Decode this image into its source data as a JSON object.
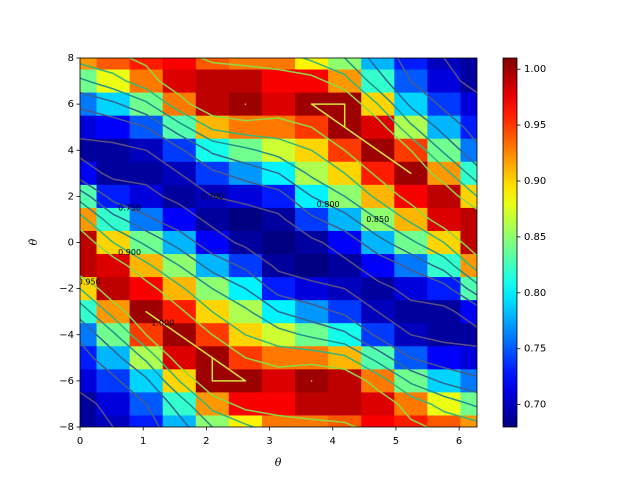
{
  "chart_data": {
    "type": "heatmap",
    "colormap": "jet",
    "x_label": "θ",
    "y_label": "θ̇",
    "x": [
      0,
      0.524,
      1.047,
      1.571,
      2.094,
      2.618,
      3.142,
      3.665,
      4.189,
      4.712,
      5.236,
      5.76,
      6.283
    ],
    "y": [
      8,
      7,
      6,
      5,
      4,
      3,
      2,
      1,
      0,
      -1,
      -2,
      -3,
      -4,
      -5,
      -6,
      -7,
      -8
    ],
    "z": [
      [
        0.92,
        0.94,
        0.96,
        0.97,
        0.94,
        0.93,
        0.93,
        0.89,
        0.85,
        0.78,
        0.73,
        0.7,
        0.69
      ],
      [
        0.84,
        0.88,
        0.93,
        0.98,
        0.99,
        0.99,
        0.97,
        0.97,
        0.92,
        0.82,
        0.75,
        0.71,
        0.69
      ],
      [
        0.76,
        0.79,
        0.84,
        0.93,
        0.99,
        1.0,
        0.98,
        1.0,
        1.0,
        0.9,
        0.79,
        0.74,
        0.71
      ],
      [
        0.71,
        0.72,
        0.75,
        0.83,
        0.91,
        0.93,
        0.93,
        0.95,
        1.0,
        0.98,
        0.86,
        0.78,
        0.73
      ],
      [
        0.69,
        0.69,
        0.7,
        0.74,
        0.81,
        0.84,
        0.87,
        0.9,
        0.95,
        1.0,
        0.95,
        0.84,
        0.76
      ],
      [
        0.72,
        0.69,
        0.69,
        0.7,
        0.74,
        0.77,
        0.8,
        0.86,
        0.9,
        0.96,
        1.0,
        0.92,
        0.82
      ],
      [
        0.83,
        0.73,
        0.71,
        0.69,
        0.7,
        0.71,
        0.73,
        0.8,
        0.85,
        0.91,
        0.97,
        0.99,
        0.9
      ],
      [
        0.92,
        0.82,
        0.76,
        0.72,
        0.69,
        0.68,
        0.69,
        0.74,
        0.78,
        0.85,
        0.91,
        0.98,
        0.99
      ],
      [
        0.99,
        0.9,
        0.84,
        0.78,
        0.72,
        0.69,
        0.68,
        0.69,
        0.72,
        0.78,
        0.84,
        0.9,
        0.99
      ],
      [
        0.99,
        0.98,
        0.91,
        0.85,
        0.78,
        0.74,
        0.69,
        0.68,
        0.69,
        0.72,
        0.76,
        0.82,
        0.92
      ],
      [
        0.9,
        0.99,
        0.97,
        0.91,
        0.85,
        0.8,
        0.73,
        0.71,
        0.7,
        0.69,
        0.71,
        0.73,
        0.83
      ],
      [
        0.82,
        0.92,
        1.0,
        0.96,
        0.9,
        0.86,
        0.8,
        0.77,
        0.74,
        0.7,
        0.69,
        0.69,
        0.72
      ],
      [
        0.76,
        0.84,
        0.95,
        1.0,
        0.95,
        0.9,
        0.87,
        0.84,
        0.81,
        0.74,
        0.7,
        0.69,
        0.69
      ],
      [
        0.73,
        0.78,
        0.86,
        0.98,
        1.0,
        0.95,
        0.93,
        0.93,
        0.91,
        0.83,
        0.75,
        0.72,
        0.71
      ],
      [
        0.71,
        0.74,
        0.79,
        0.9,
        1.0,
        1.0,
        0.98,
        1.0,
        0.99,
        0.93,
        0.84,
        0.79,
        0.76
      ],
      [
        0.69,
        0.71,
        0.75,
        0.82,
        0.92,
        0.97,
        0.97,
        0.99,
        0.99,
        0.98,
        0.93,
        0.88,
        0.84
      ],
      [
        0.69,
        0.7,
        0.73,
        0.78,
        0.85,
        0.89,
        0.93,
        0.93,
        0.94,
        0.97,
        0.96,
        0.94,
        0.92
      ]
    ],
    "xlim": [
      0,
      6.283
    ],
    "ylim": [
      -8,
      8
    ],
    "xticks": [
      0,
      1,
      2,
      3,
      4,
      5,
      6
    ],
    "yticks": [
      {
        "value": -8,
        "label": "−8"
      },
      {
        "value": -6,
        "label": "−6"
      },
      {
        "value": -4,
        "label": "−4"
      },
      {
        "value": -2,
        "label": "−2"
      },
      0,
      2,
      4,
      6,
      8
    ],
    "contour_levels": [
      {
        "value": 0.7,
        "label": "0.700"
      },
      {
        "value": 0.75,
        "label": "0.750"
      },
      {
        "value": 0.8,
        "label": "0.800"
      },
      {
        "value": 0.85,
        "label": "0.850"
      },
      {
        "value": 0.9,
        "label": "0.900"
      },
      {
        "value": 0.95,
        "label": "0.950"
      },
      {
        "value": 1.0,
        "label": "1.000"
      }
    ],
    "contour_colors": [
      "#5b4d86",
      "#485a8c",
      "#31688e",
      "#21918c",
      "#35b779",
      "#90d743",
      "#d8e53a"
    ],
    "colorbar_lim": [
      0.68,
      1.01
    ],
    "colorbar_ticks": [
      {
        "value": 0.7,
        "label": "0.70"
      },
      {
        "value": 0.75,
        "label": "0.75"
      },
      {
        "value": 0.8,
        "label": "0.80"
      },
      {
        "value": 0.85,
        "label": "0.85"
      },
      {
        "value": 0.9,
        "label": "0.90"
      },
      {
        "value": 0.95,
        "label": "0.95"
      },
      {
        "value": 1.0,
        "label": "1.00"
      }
    ]
  }
}
